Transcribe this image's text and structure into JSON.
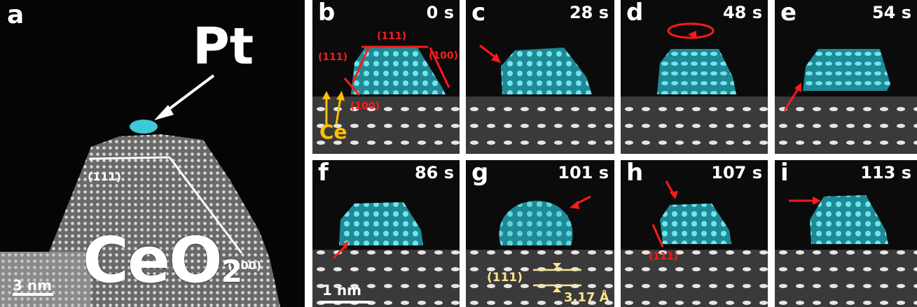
{
  "panels": {
    "a": {
      "letter": "a",
      "element": "Pt",
      "substrate_main": "CeO",
      "substrate_sub": "2",
      "facet_top": "(111)",
      "facet_side": "(100)",
      "scalebar": "3 nm"
    },
    "b": {
      "letter": "b",
      "time": "0 s",
      "facet_top": "(111)",
      "facet_left": "(111)",
      "facet_right": "(100)",
      "facet_bottom": "(100)",
      "atom_label": "Ce"
    },
    "c": {
      "letter": "c",
      "time": "28 s"
    },
    "d": {
      "letter": "d",
      "time": "48 s"
    },
    "e": {
      "letter": "e",
      "time": "54 s"
    },
    "f": {
      "letter": "f",
      "time": "86 s",
      "scalebar": "1 nm"
    },
    "g": {
      "letter": "g",
      "time": "101 s",
      "facet": "(111)",
      "spacing": "3.17 Å"
    },
    "h": {
      "letter": "h",
      "time": "107 s",
      "facet": "(111)"
    },
    "i": {
      "letter": "i",
      "time": "113 s"
    }
  },
  "colors": {
    "pt_cluster": "#3ec9d6",
    "annotation_red": "#ff1a1a",
    "ce_label": "#ffc000",
    "spacing_yellow": "#ffe58a",
    "background": "#0b0b0b"
  }
}
